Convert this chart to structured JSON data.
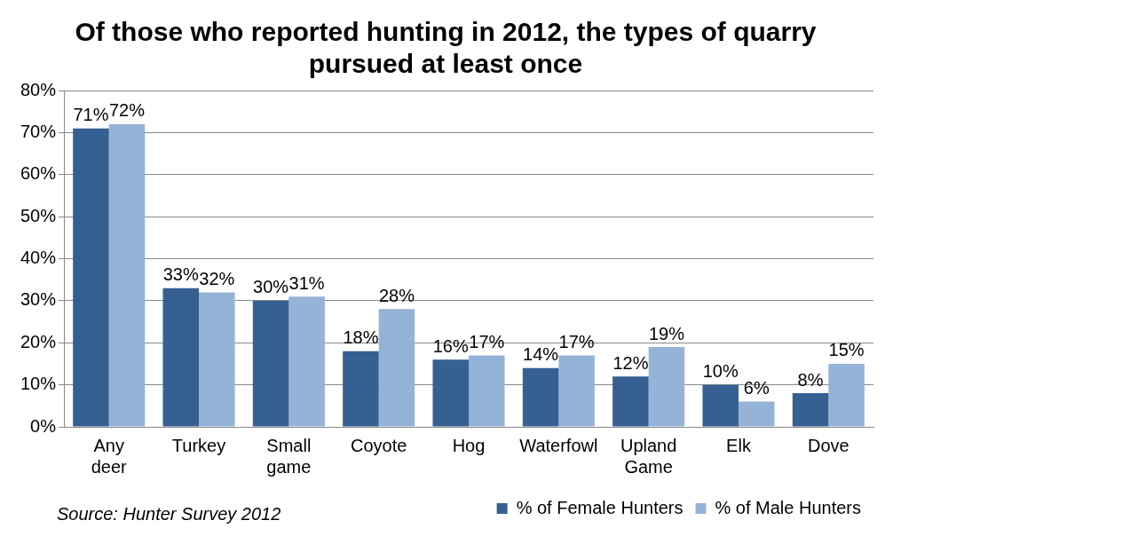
{
  "chart_data": {
    "type": "bar",
    "title": "Of those who reported hunting in 2012, the types of quarry pursued at least once",
    "categories": [
      "Any deer",
      "Turkey",
      "Small game",
      "Coyote",
      "Hog",
      "Waterfowl",
      "Upland Game",
      "Elk",
      "Dove"
    ],
    "series": [
      {
        "name": "% of Female Hunters",
        "color": "#366092",
        "values": [
          71,
          33,
          30,
          18,
          16,
          14,
          12,
          10,
          8
        ],
        "value_labels": [
          "71%",
          "33%",
          "30%",
          "18%",
          "16%",
          "14%",
          "12%",
          "10%",
          "8%"
        ]
      },
      {
        "name": "% of Male Hunters",
        "color": "#95b3d7",
        "values": [
          72,
          32,
          31,
          28,
          17,
          17,
          19,
          6,
          15
        ],
        "value_labels": [
          "72%",
          "32%",
          "31%",
          "28%",
          "17%",
          "17%",
          "19%",
          "6%",
          "15%"
        ]
      }
    ],
    "ylim": [
      0,
      80
    ],
    "yticks": [
      {
        "value": 0,
        "label": "0%"
      },
      {
        "value": 10,
        "label": "10%"
      },
      {
        "value": 20,
        "label": "20%"
      },
      {
        "value": 30,
        "label": "30%"
      },
      {
        "value": 40,
        "label": "40%"
      },
      {
        "value": 50,
        "label": "50%"
      },
      {
        "value": 60,
        "label": "60%"
      },
      {
        "value": 70,
        "label": "70%"
      },
      {
        "value": 80,
        "label": "80%"
      }
    ],
    "grid": "y",
    "legend": "bottom",
    "annotations": [
      "Source: Hunter Survey 2012"
    ]
  }
}
